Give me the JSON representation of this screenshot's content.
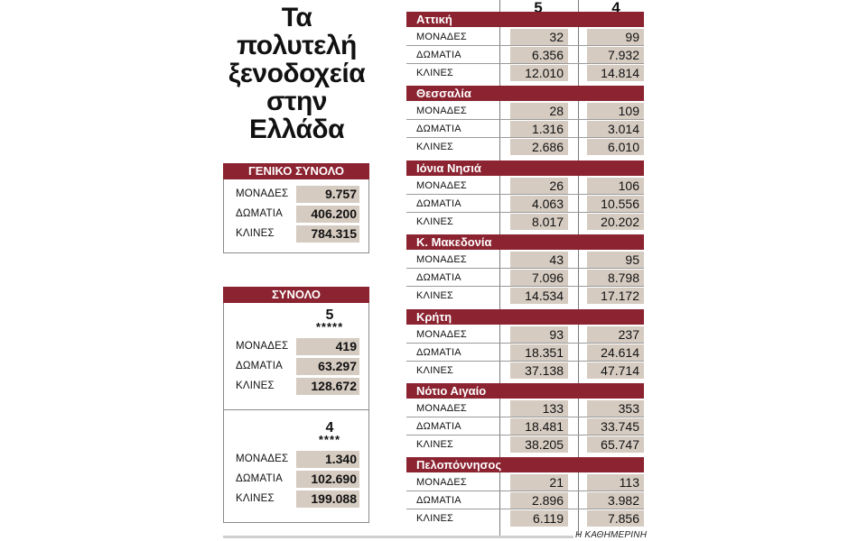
{
  "title_lines": [
    "Τα",
    "πολυτελή",
    "ξενοδοχεία",
    "στην",
    "Ελλάδα"
  ],
  "colors": {
    "header_bg": "#8b2331",
    "cell_bg": "#d5cbc1"
  },
  "grand_total": {
    "header": "ΓΕΝΙΚΟ ΣΥΝΟΛΟ",
    "rows": [
      {
        "label": "ΜΟΝΑΔΕΣ",
        "value": "9.757"
      },
      {
        "label": "ΔΩΜΑΤΙΑ",
        "value": "406.200"
      },
      {
        "label": "ΚΛΙΝΕΣ",
        "value": "784.315"
      }
    ]
  },
  "total": {
    "header": "ΣΥΝΟΛΟ",
    "groups": [
      {
        "number": "5",
        "stars": "*****",
        "rows": [
          {
            "label": "ΜΟΝΑΔΕΣ",
            "value": "419"
          },
          {
            "label": "ΔΩΜΑΤΙΑ",
            "value": "63.297"
          },
          {
            "label": "ΚΛΙΝΕΣ",
            "value": "128.672"
          }
        ]
      },
      {
        "number": "4",
        "stars": "****",
        "rows": [
          {
            "label": "ΜΟΝΑΔΕΣ",
            "value": "1.340"
          },
          {
            "label": "ΔΩΜΑΤΙΑ",
            "value": "102.690"
          },
          {
            "label": "ΚΛΙΝΕΣ",
            "value": "199.088"
          }
        ]
      }
    ]
  },
  "columns": [
    {
      "number": "5",
      "stars": "*****"
    },
    {
      "number": "4",
      "stars": "****"
    }
  ],
  "regions": [
    {
      "name": "Αττική",
      "rows": [
        {
          "label": "ΜΟΝΑΔΕΣ",
          "v5": "32",
          "v4": "99"
        },
        {
          "label": "ΔΩΜΑΤΙΑ",
          "v5": "6.356",
          "v4": "7.932"
        },
        {
          "label": "ΚΛΙΝΕΣ",
          "v5": "12.010",
          "v4": "14.814"
        }
      ]
    },
    {
      "name": "Θεσσαλία",
      "rows": [
        {
          "label": "ΜΟΝΑΔΕΣ",
          "v5": "28",
          "v4": "109"
        },
        {
          "label": "ΔΩΜΑΤΙΑ",
          "v5": "1.316",
          "v4": "3.014"
        },
        {
          "label": "ΚΛΙΝΕΣ",
          "v5": "2.686",
          "v4": "6.010"
        }
      ]
    },
    {
      "name": "Ιόνια Νησιά",
      "rows": [
        {
          "label": "ΜΟΝΑΔΕΣ",
          "v5": "26",
          "v4": "106"
        },
        {
          "label": "ΔΩΜΑΤΙΑ",
          "v5": "4.063",
          "v4": "10.556"
        },
        {
          "label": "ΚΛΙΝΕΣ",
          "v5": "8.017",
          "v4": "20.202"
        }
      ]
    },
    {
      "name": "Κ. Μακεδονία",
      "rows": [
        {
          "label": "ΜΟΝΑΔΕΣ",
          "v5": "43",
          "v4": "95"
        },
        {
          "label": "ΔΩΜΑΤΙΑ",
          "v5": "7.096",
          "v4": "8.798"
        },
        {
          "label": "ΚΛΙΝΕΣ",
          "v5": "14.534",
          "v4": "17.172"
        }
      ]
    },
    {
      "name": "Κρήτη",
      "rows": [
        {
          "label": "ΜΟΝΑΔΕΣ",
          "v5": "93",
          "v4": "237"
        },
        {
          "label": "ΔΩΜΑΤΙΑ",
          "v5": "18.351",
          "v4": "24.614"
        },
        {
          "label": "ΚΛΙΝΕΣ",
          "v5": "37.138",
          "v4": "47.714"
        }
      ]
    },
    {
      "name": "Νότιο Αιγαίο",
      "rows": [
        {
          "label": "ΜΟΝΑΔΕΣ",
          "v5": "133",
          "v4": "353"
        },
        {
          "label": "ΔΩΜΑΤΙΑ",
          "v5": "18.481",
          "v4": "33.745"
        },
        {
          "label": "ΚΛΙΝΕΣ",
          "v5": "38.205",
          "v4": "65.747"
        }
      ]
    },
    {
      "name": "Πελοπόννησος",
      "rows": [
        {
          "label": "ΜΟΝΑΔΕΣ",
          "v5": "21",
          "v4": "113"
        },
        {
          "label": "ΔΩΜΑΤΙΑ",
          "v5": "2.896",
          "v4": "3.982"
        },
        {
          "label": "ΚΛΙΝΕΣ",
          "v5": "6.119",
          "v4": "7.856"
        }
      ]
    }
  ],
  "source": "Η ΚΑΘΗΜΕΡΙΝΗ"
}
